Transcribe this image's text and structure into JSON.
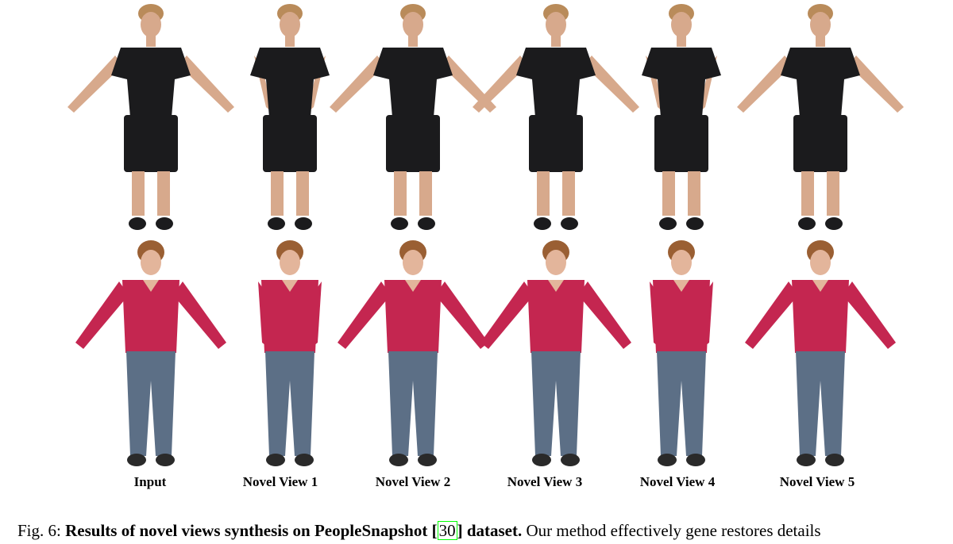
{
  "figure": {
    "columns": [
      "Input",
      "Novel View 1",
      "Novel View 2",
      "Novel View 3",
      "Novel View 4",
      "Novel View 5"
    ],
    "rows": [
      {
        "subject": "man",
        "shirt": "black t-shirt",
        "bottom": "black shorts"
      },
      {
        "subject": "woman",
        "shirt": "red long-sleeve top",
        "bottom": "blue jeans"
      }
    ],
    "colors": {
      "man_top": "#1b1b1d",
      "man_skin": "#d7a98c",
      "man_hair": "#b98b5a",
      "woman_top": "#c42650",
      "woman_jeans": "#5c6f86",
      "woman_skin": "#e3b59b",
      "woman_hair": "#9a5f33",
      "citation_box": "#00ff00"
    }
  },
  "caption": {
    "prefix": "Fig. 6:",
    "bold_text": "Results of novel views synthesis on PeopleSnapshot [",
    "citation": "30",
    "bold_end": "] dataset.",
    "body": " Our method effectively gene restores details"
  }
}
